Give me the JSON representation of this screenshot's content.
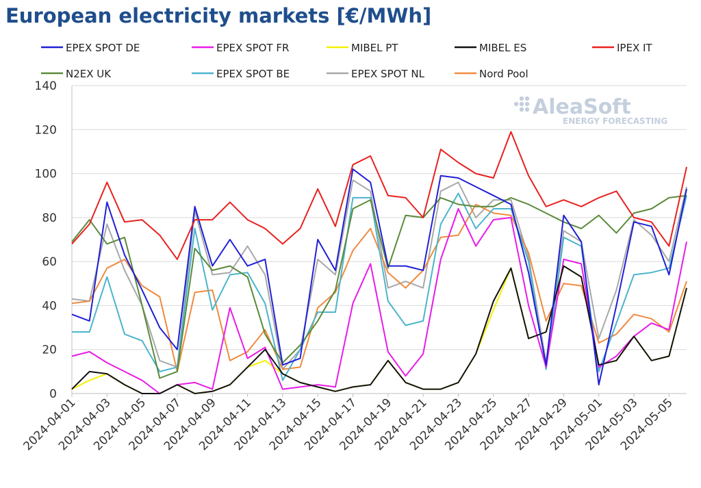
{
  "chart_data": {
    "type": "line",
    "title": "European electricity markets [€/MWh]",
    "xlabel": "",
    "ylabel": "",
    "ylim": [
      0,
      140
    ],
    "yticks": [
      0,
      20,
      40,
      60,
      80,
      100,
      120,
      140
    ],
    "grid": "horizontal",
    "legend_position": "top",
    "watermark": {
      "main": "AleaSoft",
      "sub": "ENERGY FORECASTING"
    },
    "x": [
      "2024-04-01",
      "2024-04-02",
      "2024-04-03",
      "2024-04-04",
      "2024-04-05",
      "2024-04-06",
      "2024-04-07",
      "2024-04-08",
      "2024-04-09",
      "2024-04-10",
      "2024-04-11",
      "2024-04-12",
      "2024-04-13",
      "2024-04-14",
      "2024-04-15",
      "2024-04-16",
      "2024-04-17",
      "2024-04-18",
      "2024-04-19",
      "2024-04-20",
      "2024-04-21",
      "2024-04-22",
      "2024-04-23",
      "2024-04-24",
      "2024-04-25",
      "2024-04-26",
      "2024-04-27",
      "2024-04-28",
      "2024-04-29",
      "2024-04-30",
      "2024-05-01",
      "2024-05-02",
      "2024-05-03",
      "2024-05-04",
      "2024-05-05",
      "2024-05-06"
    ],
    "x_tick_labels": [
      "2024-04-01",
      "2024-04-03",
      "2024-04-05",
      "2024-04-07",
      "2024-04-09",
      "2024-04-11",
      "2024-04-13",
      "2024-04-15",
      "2024-04-17",
      "2024-04-19",
      "2024-04-21",
      "2024-04-23",
      "2024-04-25",
      "2024-04-27",
      "2024-04-29",
      "2024-05-01",
      "2024-05-03",
      "2024-05-05"
    ],
    "series": [
      {
        "name": "EPEX SPOT DE",
        "color": "#1f1fd6",
        "values": [
          36,
          33,
          87,
          63,
          47,
          30,
          20,
          85,
          58,
          70,
          58,
          61,
          13,
          16,
          70,
          56,
          102,
          96,
          58,
          58,
          56,
          99,
          98,
          94,
          90,
          86,
          55,
          13,
          81,
          69,
          4,
          40,
          78,
          76,
          54,
          93
        ]
      },
      {
        "name": "EPEX SPOT FR",
        "color": "#e81be8",
        "values": [
          17,
          19,
          14,
          10,
          6,
          0,
          4,
          5,
          2,
          39,
          16,
          21,
          2,
          3,
          4,
          3,
          41,
          59,
          19,
          8,
          18,
          61,
          84,
          67,
          79,
          80,
          40,
          12,
          61,
          59,
          12,
          17,
          26,
          32,
          29,
          69
        ]
      },
      {
        "name": "MIBEL PT",
        "color": "#f5f000",
        "values": [
          2,
          6,
          9,
          4,
          0,
          0,
          4,
          0,
          1,
          4,
          12,
          15,
          9,
          5,
          3,
          1,
          3,
          4,
          15,
          5,
          2,
          2,
          5,
          18,
          38,
          57,
          25,
          28,
          58,
          53,
          13,
          15,
          26,
          15,
          17,
          48
        ]
      },
      {
        "name": "MIBEL ES",
        "color": "#111111",
        "values": [
          2,
          10,
          9,
          4,
          0,
          0,
          4,
          0,
          1,
          4,
          12,
          20,
          9,
          5,
          3,
          1,
          3,
          4,
          15,
          5,
          2,
          2,
          5,
          18,
          42,
          57,
          25,
          28,
          58,
          53,
          13,
          15,
          26,
          15,
          17,
          48
        ]
      },
      {
        "name": "IPEX IT",
        "color": "#e8201e",
        "values": [
          68,
          77,
          96,
          78,
          79,
          72,
          61,
          79,
          79,
          87,
          79,
          75,
          68,
          75,
          93,
          76,
          104,
          108,
          90,
          89,
          80,
          111,
          105,
          100,
          98,
          119,
          99,
          85,
          88,
          85,
          89,
          92,
          80,
          78,
          67,
          103
        ]
      },
      {
        "name": "N2EX UK",
        "color": "#5a8a3a",
        "values": [
          69,
          79,
          68,
          71,
          40,
          7,
          10,
          66,
          56,
          58,
          53,
          27,
          14,
          22,
          33,
          47,
          84,
          88,
          57,
          81,
          80,
          89,
          86,
          85,
          85,
          89,
          86,
          82,
          78,
          75,
          81,
          73,
          82,
          84,
          89,
          90
        ]
      },
      {
        "name": "EPEX SPOT BE",
        "color": "#4bb4cc",
        "values": [
          28,
          28,
          53,
          27,
          24,
          10,
          12,
          75,
          38,
          54,
          55,
          41,
          6,
          20,
          37,
          37,
          89,
          89,
          42,
          31,
          33,
          77,
          91,
          75,
          84,
          84,
          60,
          11,
          71,
          67,
          10,
          32,
          54,
          55,
          57,
          90
        ]
      },
      {
        "name": "EPEX SPOT NL",
        "color": "#a8a8a8",
        "values": [
          43,
          42,
          77,
          56,
          40,
          15,
          12,
          83,
          54,
          55,
          67,
          54,
          11,
          20,
          61,
          54,
          97,
          92,
          48,
          51,
          48,
          92,
          96,
          80,
          88,
          88,
          62,
          14,
          74,
          69,
          25,
          47,
          79,
          72,
          60,
          94
        ]
      },
      {
        "name": "Nord Pool",
        "color": "#f08a3e",
        "values": [
          41,
          42,
          57,
          61,
          49,
          44,
          10,
          46,
          47,
          15,
          19,
          29,
          11,
          12,
          39,
          46,
          65,
          75,
          55,
          48,
          56,
          71,
          72,
          86,
          82,
          81,
          64,
          33,
          50,
          49,
          23,
          27,
          36,
          34,
          28,
          51
        ]
      }
    ]
  }
}
